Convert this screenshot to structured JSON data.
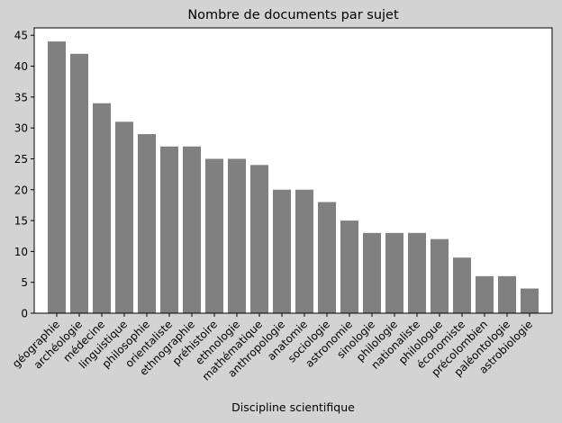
{
  "chart_data": {
    "type": "bar",
    "title": "Nombre de documents par sujet",
    "xlabel": "Discipline scientifique",
    "ylabel": "",
    "ylim": [
      0,
      46.2
    ],
    "yticks": [
      0,
      5,
      10,
      15,
      20,
      25,
      30,
      35,
      40,
      45
    ],
    "grid": false,
    "bar_color": "#808080",
    "figure_background": "#d3d3d3",
    "plot_background": "#ffffff",
    "categories": [
      "géographie",
      "archéologie",
      "médecine",
      "linguistique",
      "philosophie",
      "orientaliste",
      "ethnographie",
      "préhistoire",
      "ethnologie",
      "mathématique",
      "anthropologie",
      "anatomie",
      "sociologie",
      "astronomie",
      "sinologie",
      "philologie",
      "nationaliste",
      "philologue",
      "économiste",
      "précolombien",
      "paléontologie",
      "astrobiologie"
    ],
    "values": [
      44,
      42,
      34,
      31,
      29,
      27,
      27,
      25,
      25,
      24,
      20,
      20,
      18,
      15,
      13,
      13,
      13,
      12,
      9,
      6,
      6,
      4
    ]
  }
}
